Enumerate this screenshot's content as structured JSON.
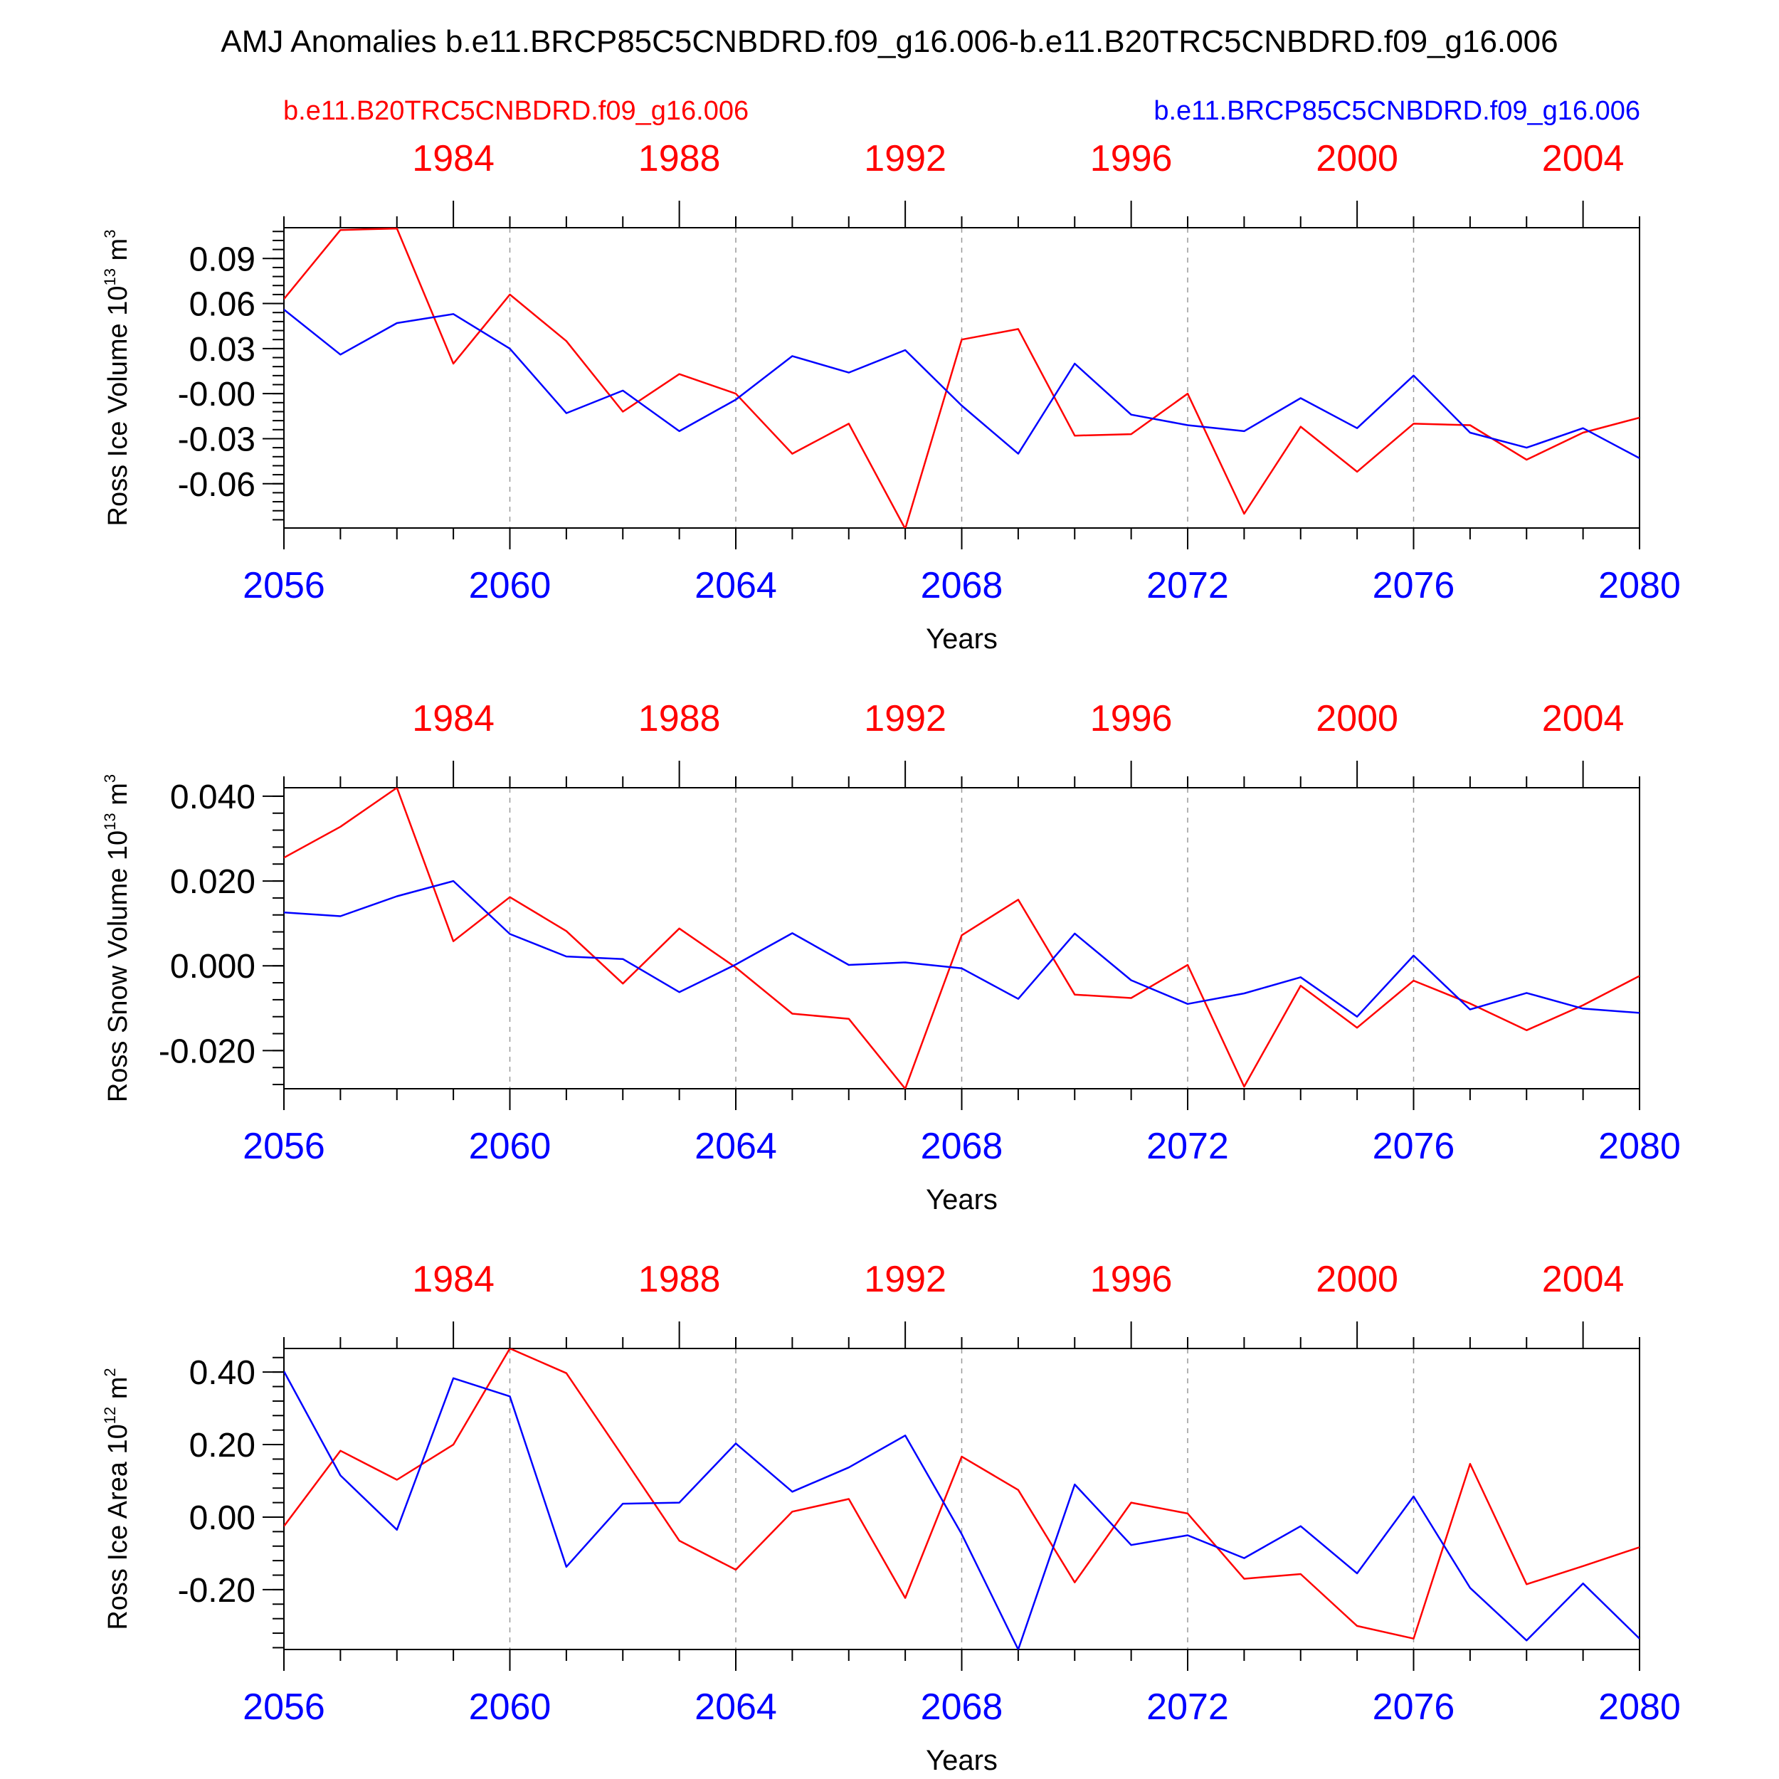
{
  "figure": {
    "title": "AMJ Anomalies b.e11.BRCP85C5CNBDRD.f09_g16.006-b.e11.B20TRC5CNBDRD.f09_g16.006",
    "legend_left": "b.e11.B20TRC5CNBDRD.f09_g16.006",
    "legend_right": "b.e11.BRCP85C5CNBDRD.f09_g16.006",
    "colors": {
      "historical": "#ff0000",
      "future": "#0000ff",
      "axis": "#000000",
      "grid": "#999999"
    }
  },
  "chart_data": [
    {
      "type": "line",
      "ylabel": "Ross Ice Volume 10",
      "ylabel_exp": "13",
      "ylabel_unit": " m",
      "ylabel_unit_exp": "3",
      "xlabel": "Years",
      "x": [
        2056,
        2057,
        2058,
        2059,
        2060,
        2061,
        2062,
        2063,
        2064,
        2065,
        2066,
        2067,
        2068,
        2069,
        2070,
        2071,
        2072,
        2073,
        2074,
        2075,
        2076,
        2077,
        2078,
        2079,
        2080
      ],
      "xlim": [
        2056,
        2080
      ],
      "ylim": [
        -0.0895,
        0.1105
      ],
      "x_ticks": [
        2056,
        2060,
        2064,
        2068,
        2072,
        2076,
        2080
      ],
      "x_tick_labels": [
        "2056",
        "2060",
        "2064",
        "2068",
        "2072",
        "2076",
        "2080"
      ],
      "top_ticks": [
        2059,
        2063,
        2067,
        2071,
        2075,
        2079
      ],
      "top_tick_labels": [
        "1984",
        "1988",
        "1992",
        "1996",
        "2000",
        "2004"
      ],
      "y_ticks": [
        0.09,
        0.06,
        0.03,
        0.0,
        -0.03,
        -0.06
      ],
      "y_tick_labels": [
        "0.09",
        "0.06",
        "0.03",
        "-0.00",
        "-0.03",
        "-0.06"
      ],
      "series": [
        {
          "key": "historical",
          "values": [
            0.063,
            0.109,
            0.11,
            0.02,
            0.066,
            0.035,
            -0.012,
            0.013,
            0.0,
            -0.04,
            -0.02,
            -0.09,
            0.036,
            0.043,
            -0.028,
            -0.027,
            0.0,
            -0.08,
            -0.022,
            -0.052,
            -0.02,
            -0.021,
            -0.044,
            -0.026,
            -0.016
          ]
        },
        {
          "key": "future",
          "values": [
            0.056,
            0.026,
            0.047,
            0.053,
            0.03,
            -0.013,
            0.002,
            -0.025,
            -0.004,
            0.025,
            0.014,
            0.029,
            -0.008,
            -0.04,
            0.02,
            -0.014,
            -0.021,
            -0.025,
            -0.003,
            -0.023,
            0.012,
            -0.026,
            -0.036,
            -0.023,
            -0.043
          ]
        }
      ],
      "grid_x": [
        2060,
        2064,
        2068,
        2072,
        2076
      ]
    },
    {
      "type": "line",
      "ylabel": "Ross Snow Volume 10",
      "ylabel_exp": "13",
      "ylabel_unit": " m",
      "ylabel_unit_exp": "3",
      "xlabel": "Years",
      "x": [
        2056,
        2057,
        2058,
        2059,
        2060,
        2061,
        2062,
        2063,
        2064,
        2065,
        2066,
        2067,
        2068,
        2069,
        2070,
        2071,
        2072,
        2073,
        2074,
        2075,
        2076,
        2077,
        2078,
        2079,
        2080
      ],
      "xlim": [
        2056,
        2080
      ],
      "ylim": [
        -0.029,
        0.042
      ],
      "x_ticks": [
        2056,
        2060,
        2064,
        2068,
        2072,
        2076,
        2080
      ],
      "x_tick_labels": [
        "2056",
        "2060",
        "2064",
        "2068",
        "2072",
        "2076",
        "2080"
      ],
      "top_ticks": [
        2059,
        2063,
        2067,
        2071,
        2075,
        2079
      ],
      "top_tick_labels": [
        "1984",
        "1988",
        "1992",
        "1996",
        "2000",
        "2004"
      ],
      "y_ticks": [
        0.04,
        0.02,
        0.0,
        -0.02
      ],
      "y_tick_labels": [
        "0.040",
        "0.020",
        "0.000",
        "-0.020"
      ],
      "series": [
        {
          "key": "historical",
          "values": [
            0.0255,
            0.0328,
            0.042,
            0.0058,
            0.0162,
            0.0082,
            -0.0042,
            0.0088,
            -0.0004,
            -0.0113,
            -0.0125,
            -0.029,
            0.0072,
            0.0156,
            -0.0068,
            -0.0076,
            0.0002,
            -0.0285,
            -0.0047,
            -0.0146,
            -0.0035,
            -0.0089,
            -0.0152,
            -0.0093,
            -0.0024
          ]
        },
        {
          "key": "future",
          "values": [
            0.0126,
            0.0117,
            0.0164,
            0.02,
            0.0075,
            0.0022,
            0.0016,
            -0.0062,
            0.0003,
            0.0077,
            0.0002,
            0.0008,
            -0.0006,
            -0.0078,
            0.0076,
            -0.0034,
            -0.009,
            -0.0065,
            -0.0027,
            -0.012,
            0.0024,
            -0.0103,
            -0.0064,
            -0.0101,
            -0.0111
          ]
        }
      ],
      "grid_x": [
        2060,
        2064,
        2068,
        2072,
        2076
      ]
    },
    {
      "type": "line",
      "ylabel": "Ross Ice Area 10",
      "ylabel_exp": "12",
      "ylabel_unit": " m",
      "ylabel_unit_exp": "2",
      "xlabel": "Years",
      "x": [
        2056,
        2057,
        2058,
        2059,
        2060,
        2061,
        2062,
        2063,
        2064,
        2065,
        2066,
        2067,
        2068,
        2069,
        2070,
        2071,
        2072,
        2073,
        2074,
        2075,
        2076,
        2077,
        2078,
        2079,
        2080
      ],
      "xlim": [
        2056,
        2080
      ],
      "ylim": [
        -0.365,
        0.465
      ],
      "x_ticks": [
        2056,
        2060,
        2064,
        2068,
        2072,
        2076,
        2080
      ],
      "x_tick_labels": [
        "2056",
        "2060",
        "2064",
        "2068",
        "2072",
        "2076",
        "2080"
      ],
      "top_ticks": [
        2059,
        2063,
        2067,
        2071,
        2075,
        2079
      ],
      "top_tick_labels": [
        "1984",
        "1988",
        "1992",
        "1996",
        "2000",
        "2004"
      ],
      "y_ticks": [
        0.4,
        0.2,
        0.0,
        -0.2
      ],
      "y_tick_labels": [
        "0.40",
        "0.20",
        "0.00",
        "-0.20"
      ],
      "series": [
        {
          "key": "historical",
          "values": [
            -0.025,
            0.183,
            0.103,
            0.2,
            0.465,
            0.397,
            0.167,
            -0.065,
            -0.145,
            0.015,
            0.05,
            -0.223,
            0.167,
            0.075,
            -0.18,
            0.04,
            0.01,
            -0.17,
            -0.157,
            -0.3,
            -0.335,
            0.147,
            -0.185,
            -0.135,
            -0.083
          ]
        },
        {
          "key": "future",
          "values": [
            0.402,
            0.115,
            -0.035,
            0.383,
            0.333,
            -0.137,
            0.037,
            0.04,
            0.203,
            0.07,
            0.137,
            0.225,
            -0.047,
            -0.365,
            0.09,
            -0.077,
            -0.05,
            -0.113,
            -0.025,
            -0.155,
            0.057,
            -0.195,
            -0.34,
            -0.183,
            -0.335
          ]
        }
      ],
      "grid_x": [
        2060,
        2064,
        2068,
        2072,
        2076
      ]
    }
  ]
}
